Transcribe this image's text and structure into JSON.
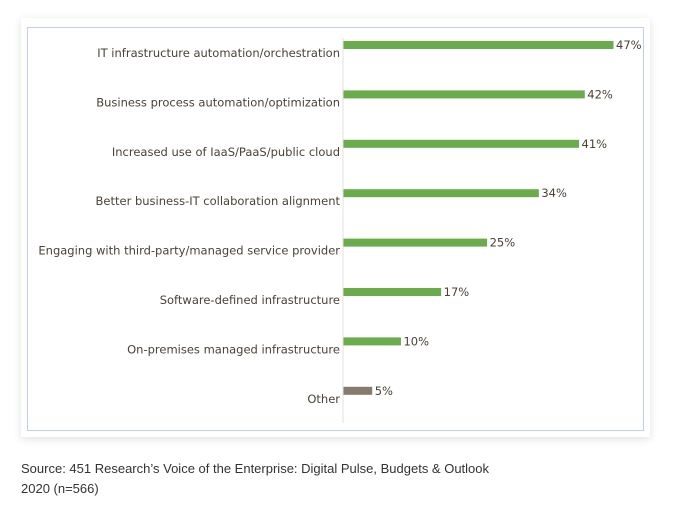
{
  "chart_data": {
    "type": "bar",
    "orientation": "horizontal",
    "categories": [
      "IT infrastructure automation/orchestration",
      "Business process automation/optimization",
      "Increased use of IaaS/PaaS/public cloud",
      "Better business-IT collaboration alignment",
      "Engaging with third-party/managed service provider",
      "Software-defined infrastructure",
      "On-premises managed infrastructure",
      "Other"
    ],
    "values": [
      47,
      42,
      41,
      34,
      25,
      17,
      10,
      5
    ],
    "value_labels": [
      "47%",
      "42%",
      "41%",
      "34%",
      "25%",
      "17%",
      "10%",
      "5%"
    ],
    "colors": [
      "#6aab4b",
      "#6aab4b",
      "#6aab4b",
      "#6aab4b",
      "#6aab4b",
      "#6aab4b",
      "#6aab4b",
      "#867b6d"
    ],
    "unit": "%",
    "grid": false,
    "legend": "none"
  },
  "source": "Source: 451 Research’s Voice of the Enterprise: Digital Pulse, Budgets & Outlook 2020 (n=566)"
}
